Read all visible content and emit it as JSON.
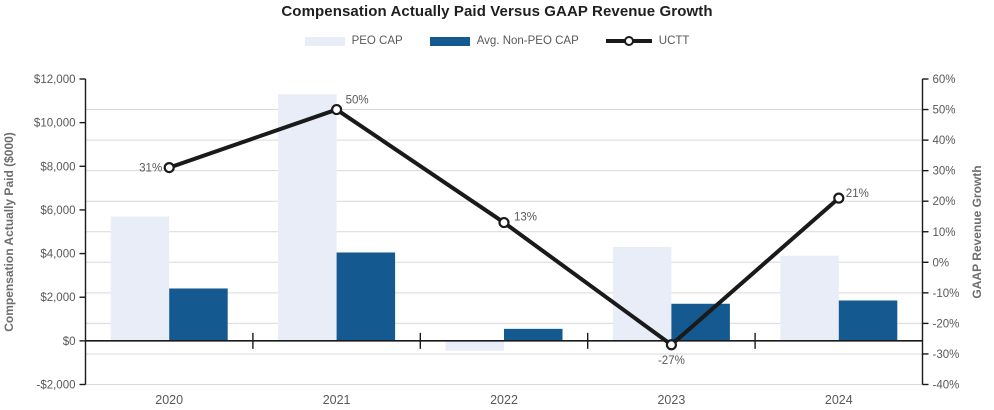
{
  "title": "Compensation Actually Paid Versus GAAP Revenue Growth",
  "legend": [
    {
      "label": "PEO CAP",
      "swatch": "bar-swatch-light",
      "color": "#e9edf7"
    },
    {
      "label": "Avg. Non-PEO CAP",
      "swatch": "bar-swatch-dark",
      "color": "#14598f"
    },
    {
      "label": "UCTT",
      "swatch": "line-swatch",
      "color": "#1a1a1a"
    }
  ],
  "chart_data": {
    "type": "combo-bar-line",
    "categories": [
      "2020",
      "2021",
      "2022",
      "2023",
      "2024"
    ],
    "series": [
      {
        "name": "PEO CAP",
        "type": "bar",
        "axis": "left",
        "color": "#e9edf7",
        "values": [
          5700,
          11300,
          -450,
          4300,
          3900
        ]
      },
      {
        "name": "Avg. Non-PEO CAP",
        "type": "bar",
        "axis": "left",
        "color": "#14598f",
        "values": [
          2400,
          4050,
          550,
          1700,
          1850
        ]
      },
      {
        "name": "UCTT",
        "type": "line",
        "axis": "right",
        "color": "#1a1a1a",
        "values": [
          31,
          50,
          13,
          -27,
          21
        ],
        "point_labels": [
          "31%",
          "50%",
          "13%",
          "-27%",
          "21%"
        ]
      }
    ],
    "left_axis": {
      "title": "Compensation Actually Paid ($000)",
      "min": -2000,
      "max": 12000,
      "step": 2000,
      "tick_labels": [
        "-$2,000",
        "$0",
        "$2,000",
        "$4,000",
        "$6,000",
        "$8,000",
        "$10,000",
        "$12,000"
      ]
    },
    "right_axis": {
      "title": "GAAP Revenue Growth",
      "min": -40,
      "max": 60,
      "step": 10,
      "tick_labels": [
        "-40%",
        "-30%",
        "-20%",
        "-10%",
        "0%",
        "10%",
        "20%",
        "30%",
        "40%",
        "50%",
        "60%"
      ]
    },
    "grid": "horizontal, right-axis 10% steps",
    "legend_position": "top",
    "colors": {
      "grid_line": "#d9d9d9",
      "axis_line": "#1a1a1a",
      "tick_text": "#595959",
      "title_text": "#1f1f1f",
      "marker_fill": "#ffffff"
    }
  }
}
